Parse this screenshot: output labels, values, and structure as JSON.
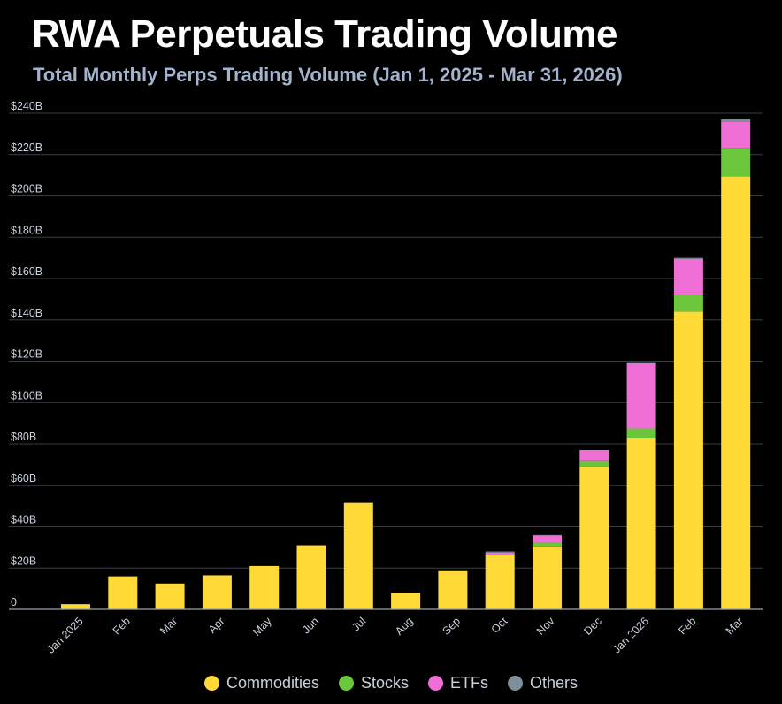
{
  "header": {
    "title": "RWA Perpetuals Trading Volume",
    "subtitle": "Total Monthly Perps Trading Volume (Jan 1, 2025 - Mar 31, 2026)"
  },
  "chart_data": {
    "type": "bar",
    "stacked": true,
    "title": "RWA Perpetuals Trading Volume",
    "subtitle": "Total Monthly Perps Trading Volume (Jan 1, 2025 - Mar 31, 2026)",
    "xlabel": "",
    "ylabel": "",
    "ylim": [
      0,
      240
    ],
    "y_ticks": [
      0,
      20,
      40,
      60,
      80,
      100,
      120,
      140,
      160,
      180,
      200,
      220,
      240
    ],
    "y_tick_labels": [
      "0",
      "$20B",
      "$40B",
      "$60B",
      "$80B",
      "$100B",
      "$120B",
      "$140B",
      "$160B",
      "$180B",
      "$200B",
      "$220B",
      "$240B"
    ],
    "grid": true,
    "legend_position": "bottom",
    "categories": [
      "Jan 2025",
      "Feb",
      "Mar",
      "Apr",
      "May",
      "Jun",
      "Jul",
      "Aug",
      "Sep",
      "Oct",
      "Nov",
      "Dec",
      "Jan 2026",
      "Feb",
      "Mar"
    ],
    "series": [
      {
        "name": "Commodities",
        "color": "#ffd935",
        "values": [
          2.5,
          16,
          12.5,
          16.5,
          21,
          31,
          51.5,
          8,
          18.5,
          26.5,
          30.5,
          69,
          83,
          144,
          209.5
        ]
      },
      {
        "name": "Stocks",
        "color": "#6cc63b",
        "values": [
          0,
          0,
          0,
          0,
          0,
          0,
          0,
          0,
          0,
          0,
          2,
          3,
          4.5,
          8,
          13.5
        ]
      },
      {
        "name": "ETFs",
        "color": "#f06fd6",
        "values": [
          0,
          0,
          0,
          0,
          0,
          0,
          0,
          0,
          0,
          1,
          3,
          5,
          31.5,
          17.5,
          13
        ]
      },
      {
        "name": "Others",
        "color": "#7f8f99",
        "values": [
          0,
          0,
          0,
          0,
          0,
          0,
          0,
          0,
          0,
          0.5,
          0.5,
          0,
          0.5,
          0.5,
          1
        ]
      }
    ]
  }
}
